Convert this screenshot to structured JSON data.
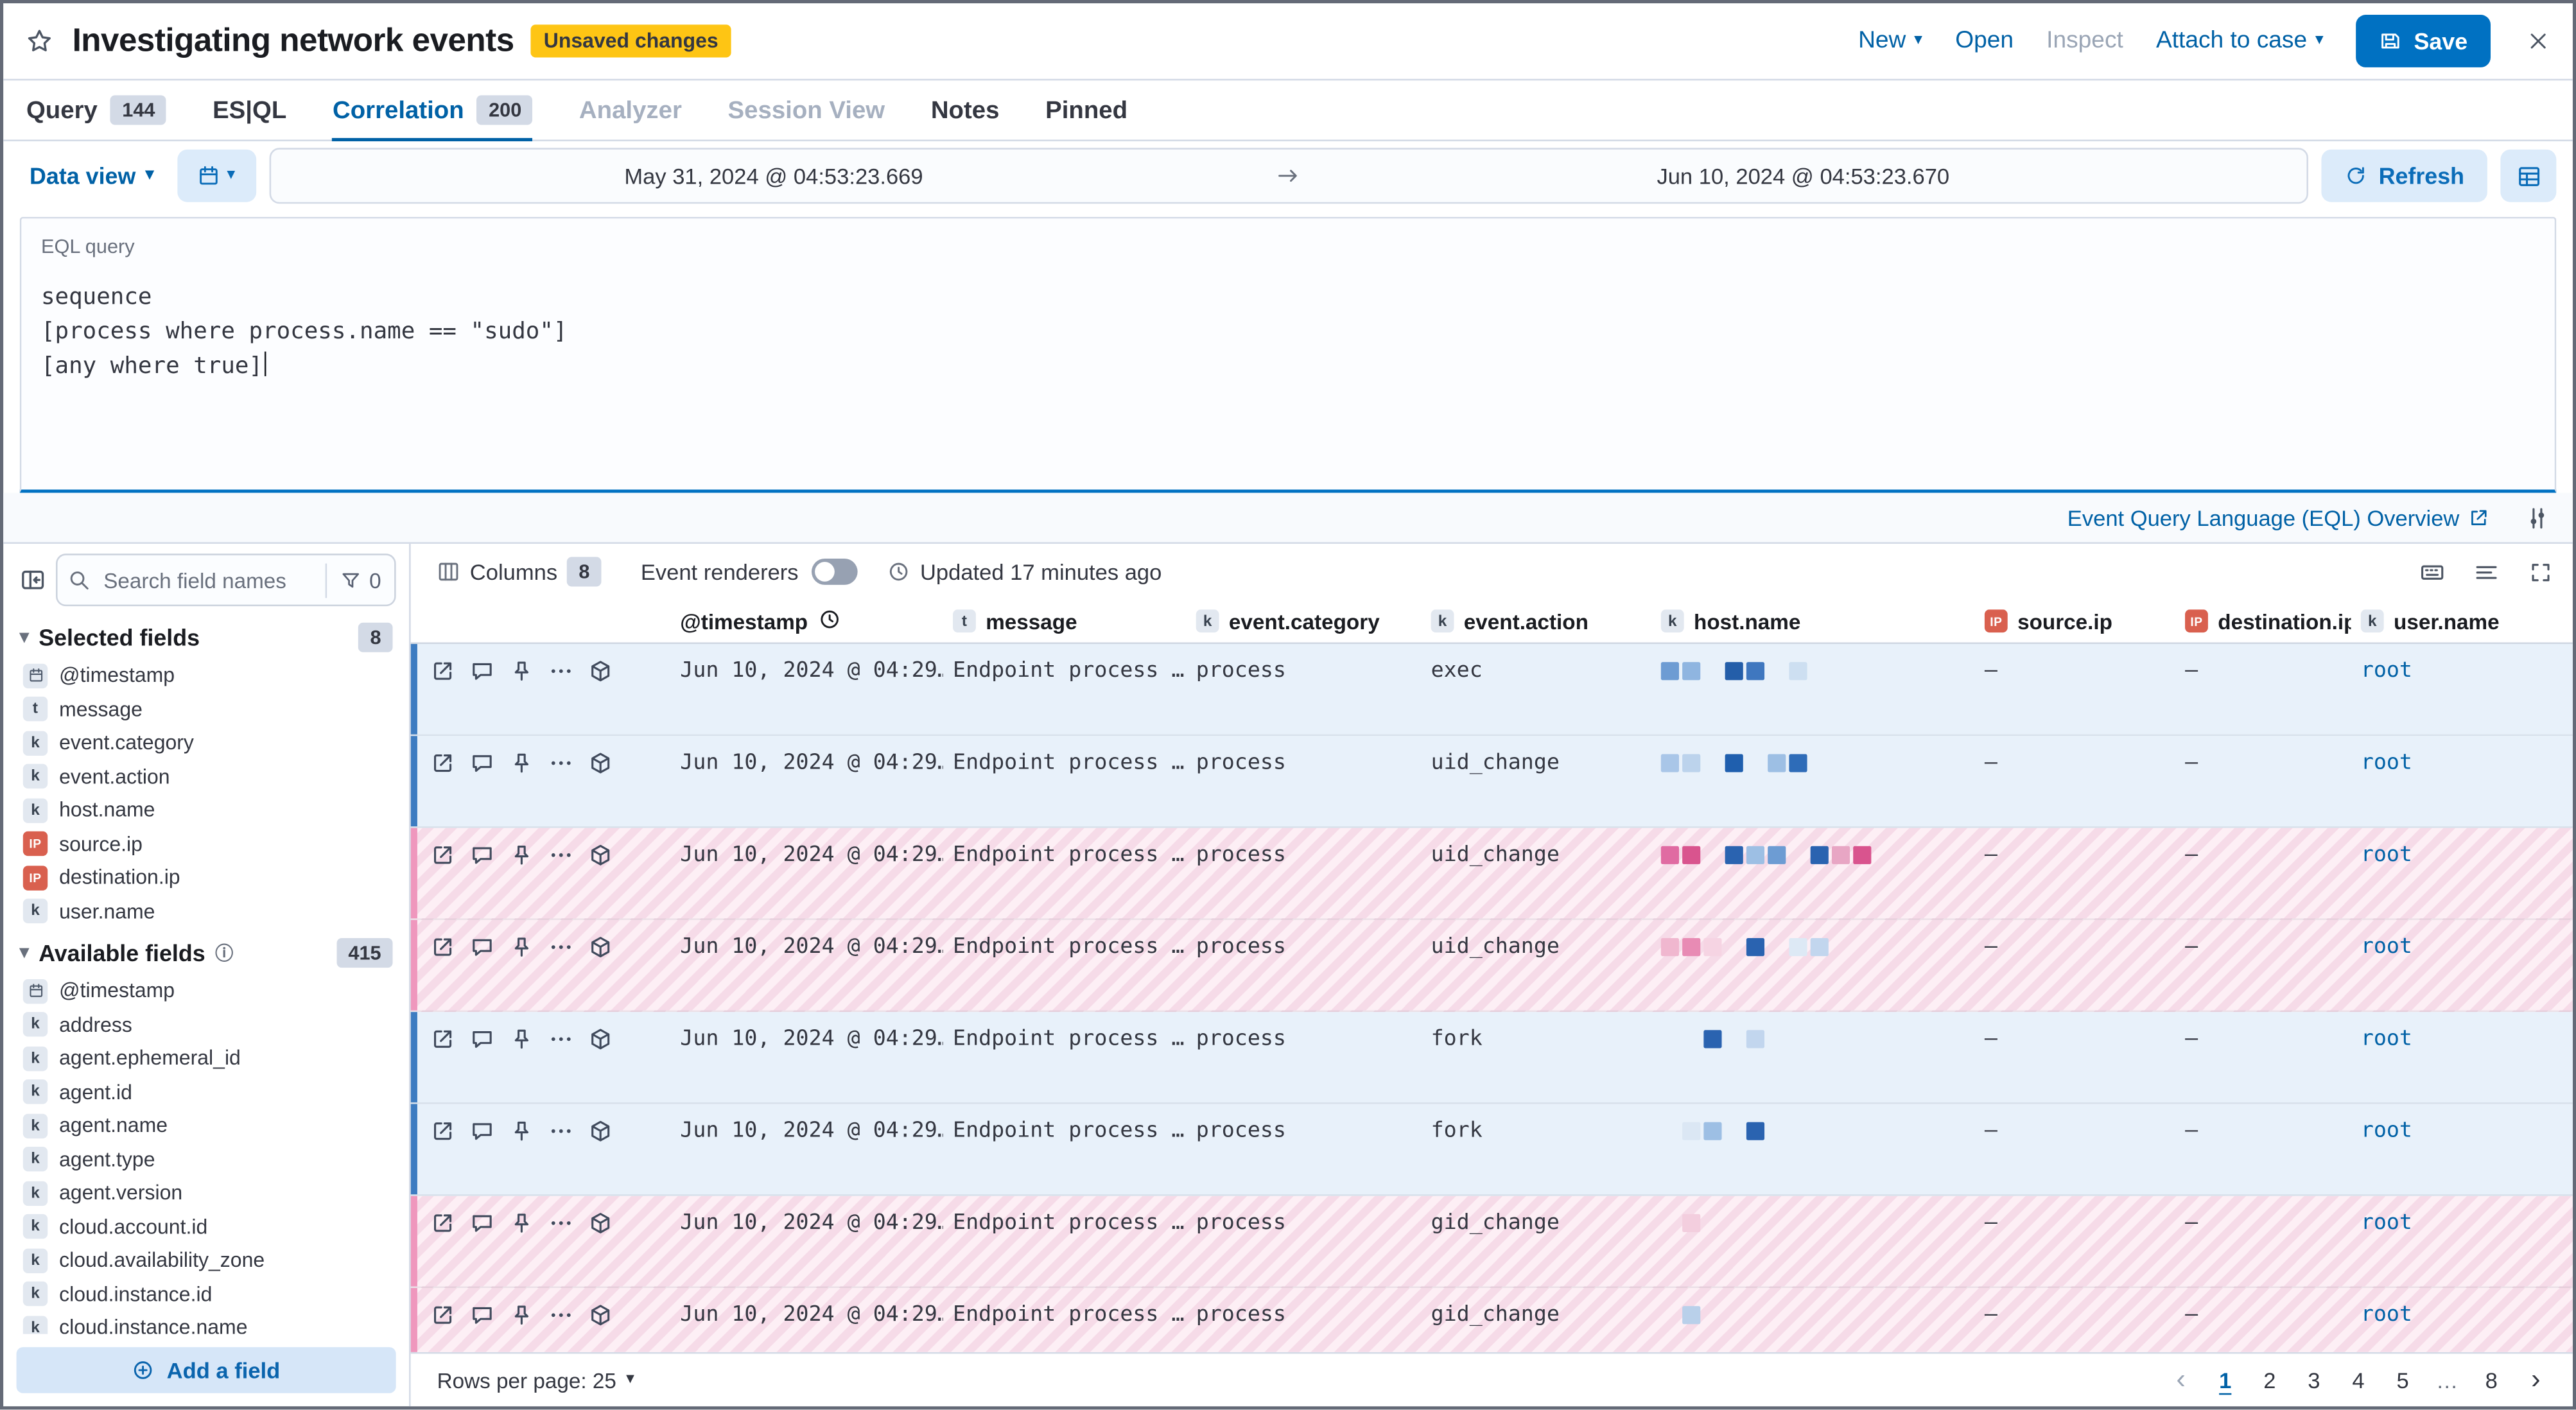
{
  "window": {
    "title": "Investigating network events",
    "unsaved_badge": "Unsaved changes",
    "actions": {
      "new": "New",
      "open": "Open",
      "inspect": "Inspect",
      "attach_to_case": "Attach to case",
      "save": "Save"
    }
  },
  "tabs": [
    {
      "label": "Query",
      "badge": "144",
      "state": "default"
    },
    {
      "label": "ES|QL",
      "badge": "",
      "state": "default"
    },
    {
      "label": "Correlation",
      "badge": "200",
      "state": "active"
    },
    {
      "label": "Analyzer",
      "badge": "",
      "state": "disabled"
    },
    {
      "label": "Session View",
      "badge": "",
      "state": "disabled"
    },
    {
      "label": "Notes",
      "badge": "",
      "state": "default"
    },
    {
      "label": "Pinned",
      "badge": "",
      "state": "default"
    }
  ],
  "query_bar": {
    "data_view_label": "Data view",
    "date_start": "May 31, 2024 @ 04:53:23.669",
    "date_end": "Jun 10, 2024 @ 04:53:23.670",
    "refresh_label": "Refresh"
  },
  "eql": {
    "label": "EQL query",
    "lines": [
      "sequence",
      "[process where process.name == \"sudo\"]",
      "[any where true]"
    ],
    "doc_link": "Event Query Language (EQL) Overview"
  },
  "sidebar": {
    "search_placeholder": "Search field names",
    "filter_count": "0",
    "selected_title": "Selected fields",
    "selected_count": "8",
    "selected_fields": [
      {
        "name": "@timestamp",
        "type": "date"
      },
      {
        "name": "message",
        "type": "text"
      },
      {
        "name": "event.category",
        "type": "keyword"
      },
      {
        "name": "event.action",
        "type": "keyword"
      },
      {
        "name": "host.name",
        "type": "keyword"
      },
      {
        "name": "source.ip",
        "type": "ip"
      },
      {
        "name": "destination.ip",
        "type": "ip"
      },
      {
        "name": "user.name",
        "type": "keyword"
      }
    ],
    "available_title": "Available fields",
    "available_count": "415",
    "available_fields": [
      {
        "name": "@timestamp",
        "type": "date"
      },
      {
        "name": "address",
        "type": "keyword"
      },
      {
        "name": "agent.ephemeral_id",
        "type": "keyword"
      },
      {
        "name": "agent.id",
        "type": "keyword"
      },
      {
        "name": "agent.name",
        "type": "keyword"
      },
      {
        "name": "agent.type",
        "type": "keyword"
      },
      {
        "name": "agent.version",
        "type": "keyword"
      },
      {
        "name": "cloud.account.id",
        "type": "keyword"
      },
      {
        "name": "cloud.availability_zone",
        "type": "keyword"
      },
      {
        "name": "cloud.instance.id",
        "type": "keyword"
      },
      {
        "name": "cloud.instance.name",
        "type": "keyword"
      }
    ],
    "add_field_label": "Add a field"
  },
  "grid": {
    "toolbar": {
      "columns_label": "Columns",
      "columns_count": "8",
      "renderers_label": "Event renderers",
      "updated_text": "Updated 17 minutes ago"
    },
    "columns": [
      {
        "label": "@timestamp",
        "type": "date_sorted"
      },
      {
        "label": "message",
        "type": "text"
      },
      {
        "label": "event.category",
        "type": "keyword"
      },
      {
        "label": "event.action",
        "type": "keyword"
      },
      {
        "label": "host.name",
        "type": "keyword"
      },
      {
        "label": "source.ip",
        "type": "ip"
      },
      {
        "label": "destination.ip",
        "type": "ip"
      },
      {
        "label": "user.name",
        "type": "keyword"
      }
    ],
    "rows": [
      {
        "timestamp": "Jun 10, 2024 @ 04:29…",
        "message": "Endpoint process …",
        "category": "process",
        "action": "exec",
        "source_ip": "–",
        "destination_ip": "–",
        "user": "root",
        "sequence": "blue",
        "host_blocks": [
          "#6d9cd3",
          "#8fb5e0",
          "_",
          "#245ea9",
          "#3f77bf",
          "_",
          "#cddff1"
        ]
      },
      {
        "timestamp": "Jun 10, 2024 @ 04:29…",
        "message": "Endpoint process …",
        "category": "process",
        "action": "uid_change",
        "source_ip": "–",
        "destination_ip": "–",
        "user": "root",
        "sequence": "blue",
        "host_blocks": [
          "#a9c6e8",
          "#bcd3ec",
          "_",
          "#1f5fae",
          "_",
          "#9dbfe4",
          "#2e6cb8"
        ]
      },
      {
        "timestamp": "Jun 10, 2024 @ 04:29…",
        "message": "Endpoint process …",
        "category": "process",
        "action": "uid_change",
        "source_ip": "–",
        "destination_ip": "–",
        "user": "root",
        "sequence": "pink",
        "host_blocks": [
          "#e06ba2",
          "#d9548e",
          "_",
          "#2a63b0",
          "#9dbfe4",
          "#6d9cd3",
          "_",
          "#2a63b0",
          "#e8a6c4",
          "#d9548e"
        ]
      },
      {
        "timestamp": "Jun 10, 2024 @ 04:29…",
        "message": "Endpoint process …",
        "category": "process",
        "action": "uid_change",
        "source_ip": "–",
        "destination_ip": "–",
        "user": "root",
        "sequence": "pink",
        "host_blocks": [
          "#f0b7cf",
          "#e88bb4",
          "#f6d4e3",
          "_",
          "#2a63b0",
          "_",
          "#dde9f5",
          "#c2d6ee"
        ]
      },
      {
        "timestamp": "Jun 10, 2024 @ 04:29…",
        "message": "Endpoint process …",
        "category": "process",
        "action": "fork",
        "source_ip": "–",
        "destination_ip": "–",
        "user": "root",
        "sequence": "blue",
        "host_blocks": [
          "_",
          "_",
          "#2a63b0",
          "_",
          "#c2d6ee"
        ]
      },
      {
        "timestamp": "Jun 10, 2024 @ 04:29…",
        "message": "Endpoint process …",
        "category": "process",
        "action": "fork",
        "source_ip": "–",
        "destination_ip": "–",
        "user": "root",
        "sequence": "blue",
        "host_blocks": [
          "_",
          "#dbe7f4",
          "#9dbfe4",
          "_",
          "#2a63b0"
        ]
      },
      {
        "timestamp": "Jun 10, 2024 @ 04:29…",
        "message": "Endpoint process …",
        "category": "process",
        "action": "gid_change",
        "source_ip": "–",
        "destination_ip": "–",
        "user": "root",
        "sequence": "pink",
        "host_blocks": [
          "_",
          "#f3cede"
        ]
      },
      {
        "timestamp": "Jun 10, 2024 @ 04:29…",
        "message": "Endpoint process …",
        "category": "process",
        "action": "gid_change",
        "source_ip": "–",
        "destination_ip": "–",
        "user": "root",
        "sequence": "pink",
        "host_blocks": [
          "_",
          "#b9d0ea"
        ]
      }
    ],
    "footer": {
      "rows_per_page": "Rows per page: 25",
      "pages": [
        "1",
        "2",
        "3",
        "4",
        "5",
        "…",
        "8"
      ],
      "active_page": "1"
    }
  },
  "icons": {
    "chevron_down": "▾",
    "prev": "‹",
    "next": "›",
    "ellipsis": "…",
    "info": "ⓘ",
    "token_text": "t",
    "token_keyword": "k",
    "token_ip": "IP"
  },
  "colors": {
    "primary": "#0071c2",
    "link": "#0061a6",
    "warning_badge": "#fec514",
    "sequence_blue": "#3d7cc1",
    "sequence_pink": "#ef97bd",
    "row_blue_bg": "#e8f1fa",
    "row_pink_bg": "#fbe3ee",
    "ip_token": "#d9604f"
  }
}
